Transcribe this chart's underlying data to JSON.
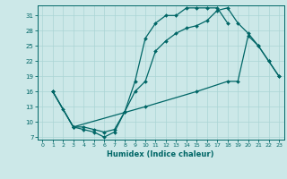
{
  "xlabel": "Humidex (Indice chaleur)",
  "bg_color": "#cce8e8",
  "line_color": "#006666",
  "grid_color": "#aad4d4",
  "xlim": [
    -0.5,
    23.5
  ],
  "ylim": [
    6.5,
    33.0
  ],
  "xticks": [
    0,
    1,
    2,
    3,
    4,
    5,
    6,
    7,
    8,
    9,
    10,
    11,
    12,
    13,
    14,
    15,
    16,
    17,
    18,
    19,
    20,
    21,
    22,
    23
  ],
  "yticks": [
    7,
    10,
    13,
    16,
    19,
    22,
    25,
    28,
    31
  ],
  "line1_x": [
    1,
    2,
    3,
    4,
    5,
    6,
    7,
    8,
    9,
    10,
    11,
    12,
    13,
    14,
    15,
    16,
    17,
    18
  ],
  "line1_y": [
    16,
    12.5,
    9,
    8.5,
    8,
    7,
    8,
    12,
    18,
    26.5,
    29.5,
    31,
    31,
    32.5,
    32.5,
    32.5,
    32.5,
    29.5
  ],
  "line2_x": [
    1,
    3,
    4,
    5,
    6,
    7,
    8,
    9,
    10,
    11,
    12,
    13,
    14,
    15,
    16,
    17,
    18,
    19,
    20,
    21,
    22,
    23
  ],
  "line2_y": [
    16,
    9,
    9,
    8.5,
    8,
    8.5,
    12,
    16,
    18,
    24,
    26,
    27.5,
    28.5,
    29,
    30,
    32,
    32.5,
    29.5,
    27.5,
    25,
    22,
    19
  ],
  "line3_x": [
    1,
    3,
    10,
    15,
    18,
    19,
    20,
    21,
    22,
    23
  ],
  "line3_y": [
    16,
    9,
    13,
    16,
    18,
    18,
    27,
    25,
    22,
    19
  ]
}
